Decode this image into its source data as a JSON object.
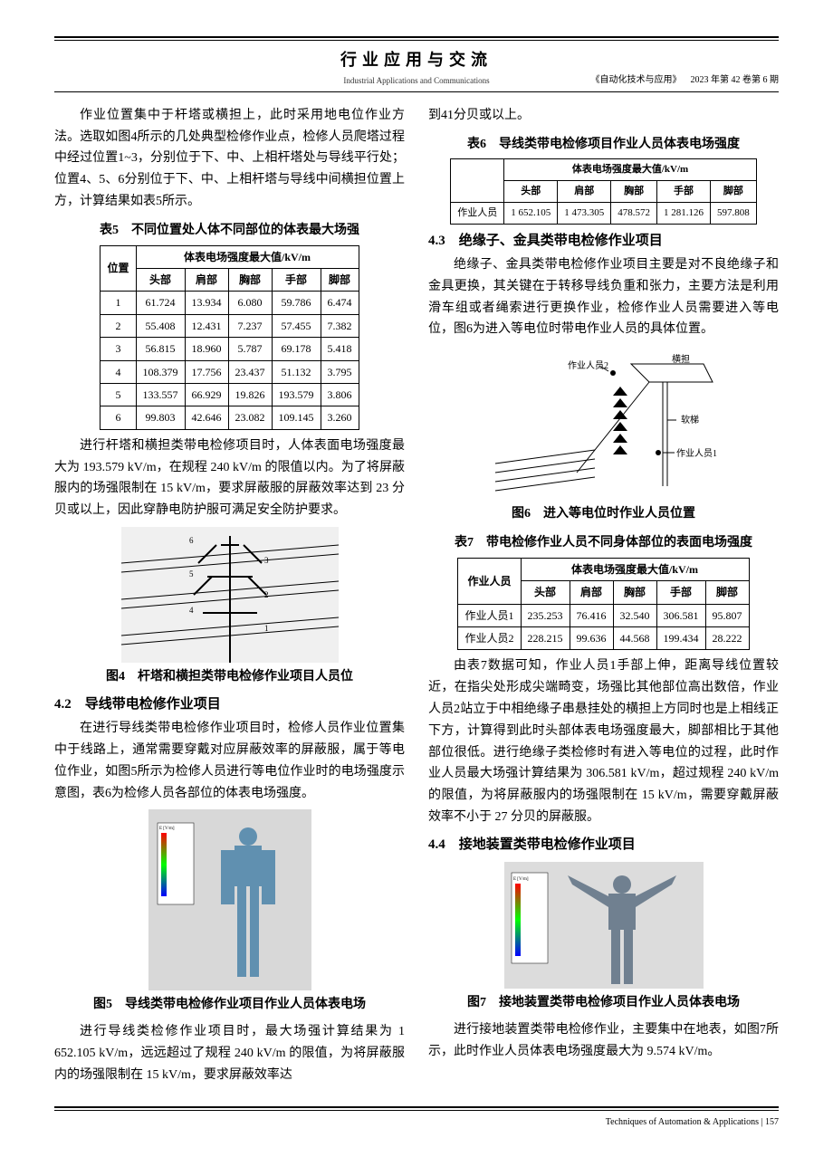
{
  "header": {
    "title_cn": "行业应用与交流",
    "title_en": "Industrial Applications and Communications",
    "journal": "《自动化技术与应用》",
    "issue": "2023 年第 42 卷第 6 期"
  },
  "left": {
    "para1": "作业位置集中于杆塔或横担上，此时采用地电位作业方法。选取如图4所示的几处典型检修作业点，检修人员爬塔过程中经过位置1~3，分别位于下、中、上相杆塔处与导线平行处；位置4、5、6分别位于下、中、上相杆塔与导线中间横担位置上方，计算结果如表5所示。",
    "table5_caption": "表5　不同位置处人体不同部位的体表最大场强",
    "table5": {
      "header_group": "体表电场强度最大值/kV/m",
      "cols": [
        "位置",
        "头部",
        "肩部",
        "胸部",
        "手部",
        "脚部"
      ],
      "rows": [
        [
          "1",
          "61.724",
          "13.934",
          "6.080",
          "59.786",
          "6.474"
        ],
        [
          "2",
          "55.408",
          "12.431",
          "7.237",
          "57.455",
          "7.382"
        ],
        [
          "3",
          "56.815",
          "18.960",
          "5.787",
          "69.178",
          "5.418"
        ],
        [
          "4",
          "108.379",
          "17.756",
          "23.437",
          "51.132",
          "3.795"
        ],
        [
          "5",
          "133.557",
          "66.929",
          "19.826",
          "193.579",
          "3.806"
        ],
        [
          "6",
          "99.803",
          "42.646",
          "23.082",
          "109.145",
          "3.260"
        ]
      ]
    },
    "para2": "进行杆塔和横担类带电检修项目时，人体表面电场强度最大为 193.579 kV/m，在规程 240 kV/m 的限值以内。为了将屏蔽服内的场强限制在 15 kV/m，要求屏蔽服的屏蔽效率达到 23 分贝或以上，因此穿静电防护服可满足安全防护要求。",
    "fig4_caption": "图4　杆塔和横担类带电检修作业项目人员位",
    "sec42": "4.2　导线带电检修作业项目",
    "para3": "在进行导线类带电检修作业项目时，检修人员作业位置集中于线路上，通常需要穿戴对应屏蔽效率的屏蔽服，属于等电位作业，如图5所示为检修人员进行等电位作业时的电场强度示意图，表6为检修人员各部位的体表电场强度。",
    "fig5_caption": "图5　导线类带电检修作业项目作业人员体表电场",
    "para4": "进行导线类检修作业项目时，最大场强计算结果为 1 652.105 kV/m，远远超过了规程 240 kV/m 的限值，为将屏蔽服内的场强限制在 15 kV/m，要求屏蔽效率达"
  },
  "right": {
    "para1": "到41分贝或以上。",
    "table6_caption": "表6　导线类带电检修项目作业人员体表电场强度",
    "table6": {
      "header_group": "体表电场强度最大值/kV/m",
      "cols": [
        "",
        "头部",
        "肩部",
        "胸部",
        "手部",
        "脚部"
      ],
      "rows": [
        [
          "作业人员",
          "1 652.105",
          "1 473.305",
          "478.572",
          "1 281.126",
          "597.808"
        ]
      ]
    },
    "sec43": "4.3　绝缘子、金具类带电检修作业项目",
    "para2": "绝缘子、金具类带电检修作业项目主要是对不良绝缘子和金具更换，其关键在于转移导线负重和张力，主要方法是利用滑车组或者绳索进行更换作业，检修作业人员需要进入等电位，图6为进入等电位时带电作业人员的具体位置。",
    "fig6_labels": {
      "p2": "作业人员2",
      "hd": "横担",
      "rt": "软梯",
      "p1": "作业人员1"
    },
    "fig6_caption": "图6　进入等电位时作业人员位置",
    "table7_caption": "表7　带电检修作业人员不同身体部位的表面电场强度",
    "table7": {
      "header_group": "体表电场强度最大值/kV/m",
      "cols": [
        "作业人员",
        "头部",
        "肩部",
        "胸部",
        "手部",
        "脚部"
      ],
      "rows": [
        [
          "作业人员1",
          "235.253",
          "76.416",
          "32.540",
          "306.581",
          "95.807"
        ],
        [
          "作业人员2",
          "228.215",
          "99.636",
          "44.568",
          "199.434",
          "28.222"
        ]
      ]
    },
    "para3": "由表7数据可知，作业人员1手部上伸，距离导线位置较近，在指尖处形成尖端畸变，场强比其他部位高出数倍，作业人员2站立于中相绝缘子串悬挂处的横担上方同时也是上相线正下方，计算得到此时头部体表电场强度最大，脚部相比于其他部位很低。进行绝缘子类检修时有进入等电位的过程，此时作业人员最大场强计算结果为 306.581 kV/m，超过规程 240 kV/m 的限值，为将屏蔽服内的场强限制在 15 kV/m，需要穿戴屏蔽效率不小于 27 分贝的屏蔽服。",
    "sec44": "4.4　接地装置类带电检修作业项目",
    "fig7_caption": "图7　接地装置类带电检修项目作业人员体表电场",
    "para4": "进行接地装置类带电检修作业，主要集中在地表，如图7所示，此时作业人员体表电场强度最大为 9.574 kV/m。"
  },
  "footer": {
    "text": "Techniques of Automation & Applications | 157"
  }
}
